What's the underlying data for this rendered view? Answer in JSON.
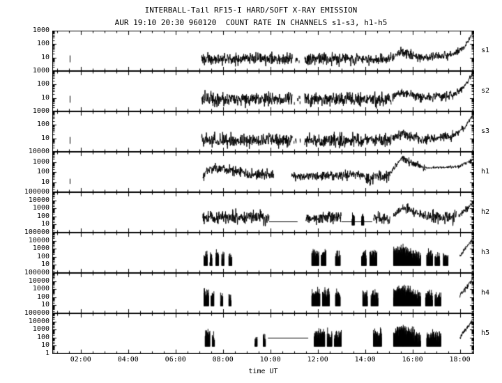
{
  "chart_data": {
    "type": "line",
    "title": "INTERBALL-Tail RF15-I HARD/SOFT X-RAY EMISSION",
    "subtitle": "AUR 19:10 20:30 960120  COUNT RATE IN CHANNELS s1-s3, h1-h5",
    "xlabel": "time UT",
    "x_range_hours": [
      0.8,
      18.6
    ],
    "x_ticks": [
      {
        "hour": 2,
        "label": "02:00"
      },
      {
        "hour": 4,
        "label": "04:00"
      },
      {
        "hour": 6,
        "label": "06:00"
      },
      {
        "hour": 8,
        "label": "08:00"
      },
      {
        "hour": 10,
        "label": "10:00"
      },
      {
        "hour": 12,
        "label": "12:00"
      },
      {
        "hour": 14,
        "label": "14:00"
      },
      {
        "hour": 16,
        "label": "16:00"
      },
      {
        "hour": 18,
        "label": "18:00"
      }
    ],
    "panels": [
      {
        "name": "s1",
        "ymin": 1,
        "ymax": 1000,
        "yticks": [
          {
            "value": 1000,
            "label": "1000"
          },
          {
            "value": 100,
            "label": "100"
          },
          {
            "value": 10,
            "label": "10"
          }
        ],
        "segments": [
          {
            "t0": 1.55,
            "t1": 1.58,
            "type": "spike",
            "level": 8
          },
          {
            "t0": 7.1,
            "t1": 10.95,
            "type": "noise",
            "level": 8,
            "spread": 0.22
          },
          {
            "t0": 11.0,
            "t1": 11.3,
            "type": "sparse",
            "level": 7
          },
          {
            "t0": 11.45,
            "t1": 15.1,
            "type": "noise",
            "level": 8,
            "spread": 0.22
          },
          {
            "t0": 15.15,
            "t1": 15.55,
            "type": "noise",
            "level": 12,
            "level2": 26,
            "spread": 0.15
          },
          {
            "t0": 15.55,
            "t1": 16.4,
            "type": "noise",
            "level": 26,
            "level2": 10,
            "spread": 0.18
          },
          {
            "t0": 16.4,
            "t1": 17.7,
            "type": "noise",
            "level": 10,
            "level2": 16,
            "spread": 0.16
          },
          {
            "t0": 17.7,
            "t1": 18.2,
            "type": "noise",
            "level": 16,
            "level2": 60,
            "spread": 0.12
          },
          {
            "t0": 18.2,
            "t1": 18.55,
            "type": "noise",
            "level": 60,
            "level2": 700,
            "spread": 0.08
          }
        ]
      },
      {
        "name": "s2",
        "ymin": 1,
        "ymax": 1000,
        "yticks": [
          {
            "value": 1000,
            "label": "1000"
          },
          {
            "value": 100,
            "label": "100"
          },
          {
            "value": 10,
            "label": "10"
          }
        ],
        "segments": [
          {
            "t0": 1.55,
            "t1": 1.58,
            "type": "spike",
            "level": 8
          },
          {
            "t0": 7.1,
            "t1": 10.95,
            "type": "noise",
            "level": 8,
            "spread": 0.24
          },
          {
            "t0": 11.0,
            "t1": 11.3,
            "type": "sparse",
            "level": 7
          },
          {
            "t0": 11.45,
            "t1": 15.1,
            "type": "noise",
            "level": 8,
            "spread": 0.24
          },
          {
            "t0": 15.15,
            "t1": 15.55,
            "type": "noise",
            "level": 12,
            "level2": 28,
            "spread": 0.15
          },
          {
            "t0": 15.55,
            "t1": 16.4,
            "type": "noise",
            "level": 28,
            "level2": 10,
            "spread": 0.18
          },
          {
            "t0": 16.4,
            "t1": 17.7,
            "type": "noise",
            "level": 10,
            "level2": 16,
            "spread": 0.16
          },
          {
            "t0": 17.7,
            "t1": 18.2,
            "type": "noise",
            "level": 16,
            "level2": 70,
            "spread": 0.12
          },
          {
            "t0": 18.2,
            "t1": 18.55,
            "type": "noise",
            "level": 70,
            "level2": 700,
            "spread": 0.08
          }
        ]
      },
      {
        "name": "s3",
        "ymin": 1,
        "ymax": 1000,
        "yticks": [
          {
            "value": 1000,
            "label": "1000"
          },
          {
            "value": 100,
            "label": "100"
          },
          {
            "value": 10,
            "label": "10"
          }
        ],
        "segments": [
          {
            "t0": 1.55,
            "t1": 1.58,
            "type": "spike",
            "level": 7
          },
          {
            "t0": 7.1,
            "t1": 10.95,
            "type": "noise",
            "level": 7,
            "spread": 0.24
          },
          {
            "t0": 11.0,
            "t1": 11.3,
            "type": "sparse",
            "level": 6
          },
          {
            "t0": 11.45,
            "t1": 15.1,
            "type": "noise",
            "level": 7,
            "spread": 0.24
          },
          {
            "t0": 15.15,
            "t1": 15.55,
            "type": "noise",
            "level": 10,
            "level2": 24,
            "spread": 0.16
          },
          {
            "t0": 15.55,
            "t1": 16.4,
            "type": "noise",
            "level": 24,
            "level2": 9,
            "spread": 0.18
          },
          {
            "t0": 16.4,
            "t1": 17.7,
            "type": "noise",
            "level": 9,
            "level2": 15,
            "spread": 0.16
          },
          {
            "t0": 17.7,
            "t1": 18.2,
            "type": "noise",
            "level": 15,
            "level2": 60,
            "spread": 0.12
          },
          {
            "t0": 18.2,
            "t1": 18.55,
            "type": "noise",
            "level": 60,
            "level2": 600,
            "spread": 0.08
          }
        ]
      },
      {
        "name": "h1",
        "ymin": 1,
        "ymax": 10000,
        "yticks": [
          {
            "value": 10000,
            "label": "10000"
          },
          {
            "value": 1000,
            "label": "1000"
          },
          {
            "value": 100,
            "label": "100"
          },
          {
            "value": 10,
            "label": "10"
          }
        ],
        "segments": [
          {
            "t0": 1.55,
            "t1": 1.58,
            "type": "spike",
            "level": 12
          },
          {
            "t0": 7.15,
            "t1": 7.5,
            "type": "noise",
            "level": 40,
            "level2": 220,
            "spread": 0.2
          },
          {
            "t0": 7.5,
            "t1": 8.15,
            "type": "noise",
            "level": 200,
            "spread": 0.25
          },
          {
            "t0": 8.15,
            "t1": 9.6,
            "type": "noise",
            "level": 160,
            "level2": 45,
            "spread": 0.25
          },
          {
            "t0": 9.6,
            "t1": 10.15,
            "type": "noise",
            "level": 55,
            "spread": 0.3
          },
          {
            "t0": 10.9,
            "t1": 13.8,
            "type": "noise",
            "level": 35,
            "level2": 55,
            "spread": 0.22
          },
          {
            "t0": 13.8,
            "t1": 14.35,
            "type": "noise",
            "level": 45,
            "level2": 18,
            "spread": 0.25
          },
          {
            "t0": 14.35,
            "t1": 15.05,
            "type": "noise",
            "level": 40,
            "spread": 0.3
          },
          {
            "t0": 15.05,
            "t1": 15.55,
            "type": "noise",
            "level": 70,
            "level2": 2500,
            "spread": 0.12
          },
          {
            "t0": 15.55,
            "t1": 16.55,
            "type": "noise",
            "level": 2500,
            "level2": 220,
            "spread": 0.18
          },
          {
            "t0": 16.55,
            "t1": 17.9,
            "type": "noise",
            "level": 260,
            "level2": 320,
            "spread": 0.06
          },
          {
            "t0": 17.9,
            "t1": 18.55,
            "type": "noise",
            "level": 300,
            "level2": 1500,
            "spread": 0.08
          }
        ]
      },
      {
        "name": "h2",
        "ymin": 1,
        "ymax": 100000,
        "yticks": [
          {
            "value": 100000,
            "label": "100000"
          },
          {
            "value": 10000,
            "label": "10000"
          },
          {
            "value": 1000,
            "label": "1000"
          },
          {
            "value": 100,
            "label": "100"
          },
          {
            "value": 10,
            "label": "10"
          }
        ],
        "segments": [
          {
            "t0": 7.15,
            "t1": 9.95,
            "type": "noise",
            "level": 70,
            "spread": 0.4
          },
          {
            "t0": 9.95,
            "t1": 11.15,
            "type": "line",
            "level": 25
          },
          {
            "t0": 11.5,
            "t1": 13.0,
            "type": "noise",
            "level": 70,
            "spread": 0.4
          },
          {
            "t0": 13.0,
            "t1": 14.3,
            "type": "line",
            "level": 25
          },
          {
            "t0": 13.45,
            "t1": 13.55,
            "type": "burst",
            "level": 120,
            "spread": 0.3
          },
          {
            "t0": 13.85,
            "t1": 13.95,
            "type": "burst",
            "level": 100,
            "spread": 0.3
          },
          {
            "t0": 14.35,
            "t1": 15.05,
            "type": "noise",
            "level": 60,
            "spread": 0.35
          },
          {
            "t0": 15.2,
            "t1": 15.6,
            "type": "noise",
            "level": 120,
            "level2": 1200,
            "spread": 0.25
          },
          {
            "t0": 15.6,
            "t1": 16.55,
            "type": "noise",
            "level": 1200,
            "level2": 100,
            "spread": 0.3
          },
          {
            "t0": 16.6,
            "t1": 17.85,
            "type": "noise",
            "level": 80,
            "spread": 0.4
          },
          {
            "t0": 17.95,
            "t1": 18.55,
            "type": "noise",
            "level": 150,
            "level2": 4000,
            "spread": 0.2
          }
        ]
      },
      {
        "name": "h3",
        "ymin": 1,
        "ymax": 100000,
        "yticks": [
          {
            "value": 100000,
            "label": "100000"
          },
          {
            "value": 10000,
            "label": "10000"
          },
          {
            "value": 1000,
            "label": "1000"
          },
          {
            "value": 100,
            "label": "100"
          },
          {
            "value": 10,
            "label": "10"
          }
        ],
        "segments": [
          {
            "t0": 7.2,
            "t1": 7.35,
            "type": "burst",
            "level": 150,
            "spread": 0.35
          },
          {
            "t0": 7.45,
            "t1": 7.55,
            "type": "burst",
            "level": 100,
            "spread": 0.35
          },
          {
            "t0": 7.7,
            "t1": 7.82,
            "type": "burst",
            "level": 130,
            "spread": 0.35
          },
          {
            "t0": 7.95,
            "t1": 8.05,
            "type": "burst",
            "level": 90,
            "spread": 0.35
          },
          {
            "t0": 8.25,
            "t1": 8.38,
            "type": "burst",
            "level": 70,
            "spread": 0.35
          },
          {
            "t0": 11.75,
            "t1": 12.05,
            "type": "burst",
            "level": 200,
            "spread": 0.35
          },
          {
            "t0": 12.15,
            "t1": 12.35,
            "type": "burst",
            "level": 150,
            "spread": 0.35
          },
          {
            "t0": 12.75,
            "t1": 12.95,
            "type": "burst",
            "level": 130,
            "spread": 0.35
          },
          {
            "t0": 13.85,
            "t1": 14.05,
            "type": "burst",
            "level": 150,
            "spread": 0.35
          },
          {
            "t0": 14.2,
            "t1": 14.5,
            "type": "burst",
            "level": 170,
            "spread": 0.35
          },
          {
            "t0": 15.2,
            "t1": 15.6,
            "type": "burst",
            "level": 300,
            "level2": 900,
            "spread": 0.3
          },
          {
            "t0": 15.6,
            "t1": 16.35,
            "type": "burst",
            "level": 900,
            "level2": 90,
            "spread": 0.35
          },
          {
            "t0": 16.6,
            "t1": 16.85,
            "type": "burst",
            "level": 140,
            "spread": 0.35
          },
          {
            "t0": 16.95,
            "t1": 17.15,
            "type": "burst",
            "level": 110,
            "spread": 0.35
          },
          {
            "t0": 17.3,
            "t1": 17.5,
            "type": "burst",
            "level": 90,
            "spread": 0.35
          },
          {
            "t0": 18.0,
            "t1": 18.55,
            "type": "noise",
            "level": 120,
            "level2": 20000,
            "spread": 0.15
          }
        ]
      },
      {
        "name": "h4",
        "ymin": 1,
        "ymax": 100000,
        "yticks": [
          {
            "value": 100000,
            "label": "100000"
          },
          {
            "value": 10000,
            "label": "10000"
          },
          {
            "value": 1000,
            "label": "1000"
          },
          {
            "value": 100,
            "label": "100"
          },
          {
            "value": 10,
            "label": "10"
          }
        ],
        "segments": [
          {
            "t0": 7.2,
            "t1": 7.4,
            "type": "burst",
            "level": 250,
            "spread": 0.35
          },
          {
            "t0": 7.5,
            "t1": 7.62,
            "type": "burst",
            "level": 150,
            "spread": 0.35
          },
          {
            "t0": 7.9,
            "t1": 8.0,
            "type": "burst",
            "level": 110,
            "spread": 0.35
          },
          {
            "t0": 8.25,
            "t1": 8.35,
            "type": "burst",
            "level": 90,
            "spread": 0.35
          },
          {
            "t0": 11.75,
            "t1": 12.1,
            "type": "burst",
            "level": 300,
            "spread": 0.35
          },
          {
            "t0": 12.2,
            "t1": 12.5,
            "type": "burst",
            "level": 250,
            "spread": 0.35
          },
          {
            "t0": 12.75,
            "t1": 12.95,
            "type": "burst",
            "level": 150,
            "spread": 0.35
          },
          {
            "t0": 13.9,
            "t1": 14.1,
            "type": "burst",
            "level": 150,
            "spread": 0.35
          },
          {
            "t0": 14.25,
            "t1": 14.55,
            "type": "burst",
            "level": 200,
            "spread": 0.35
          },
          {
            "t0": 15.2,
            "t1": 15.6,
            "type": "burst",
            "level": 400,
            "level2": 1200,
            "spread": 0.3
          },
          {
            "t0": 15.6,
            "t1": 16.35,
            "type": "burst",
            "level": 1200,
            "level2": 100,
            "spread": 0.35
          },
          {
            "t0": 16.55,
            "t1": 16.85,
            "type": "burst",
            "level": 180,
            "spread": 0.35
          },
          {
            "t0": 16.95,
            "t1": 17.2,
            "type": "burst",
            "level": 130,
            "spread": 0.35
          },
          {
            "t0": 18.0,
            "t1": 18.55,
            "type": "noise",
            "level": 150,
            "level2": 20000,
            "spread": 0.15
          }
        ]
      },
      {
        "name": "h5",
        "ymin": 1,
        "ymax": 100000,
        "yticks": [
          {
            "value": 100000,
            "label": "100000"
          },
          {
            "value": 10000,
            "label": "10000"
          },
          {
            "value": 1000,
            "label": "1000"
          },
          {
            "value": 100,
            "label": "100"
          },
          {
            "value": 10,
            "label": "10"
          },
          {
            "value": 1,
            "label": "1"
          }
        ],
        "segments": [
          {
            "t0": 7.25,
            "t1": 7.45,
            "type": "burst",
            "level": 400,
            "spread": 0.35
          },
          {
            "t0": 7.55,
            "t1": 7.65,
            "type": "burst",
            "level": 150,
            "spread": 0.35
          },
          {
            "t0": 9.35,
            "t1": 9.45,
            "type": "burst",
            "level": 60,
            "spread": 0.3
          },
          {
            "t0": 9.7,
            "t1": 9.8,
            "type": "burst",
            "level": 80,
            "spread": 0.3
          },
          {
            "t0": 9.9,
            "t1": 11.6,
            "type": "line",
            "level": 90
          },
          {
            "t0": 11.85,
            "t1": 12.3,
            "type": "burst",
            "level": 250,
            "spread": 0.35
          },
          {
            "t0": 12.4,
            "t1": 12.6,
            "type": "burst",
            "level": 180,
            "spread": 0.35
          },
          {
            "t0": 12.7,
            "t1": 13.0,
            "type": "burst",
            "level": 200,
            "spread": 0.35
          },
          {
            "t0": 14.35,
            "t1": 14.7,
            "type": "burst",
            "level": 200,
            "spread": 0.35
          },
          {
            "t0": 15.2,
            "t1": 15.6,
            "type": "burst",
            "level": 400,
            "level2": 1100,
            "spread": 0.3
          },
          {
            "t0": 15.6,
            "t1": 16.35,
            "type": "burst",
            "level": 1100,
            "level2": 90,
            "spread": 0.35
          },
          {
            "t0": 16.6,
            "t1": 17.2,
            "type": "burst",
            "level": 150,
            "spread": 0.35
          },
          {
            "t0": 18.0,
            "t1": 18.55,
            "type": "noise",
            "level": 120,
            "level2": 15000,
            "spread": 0.15
          }
        ]
      }
    ]
  }
}
